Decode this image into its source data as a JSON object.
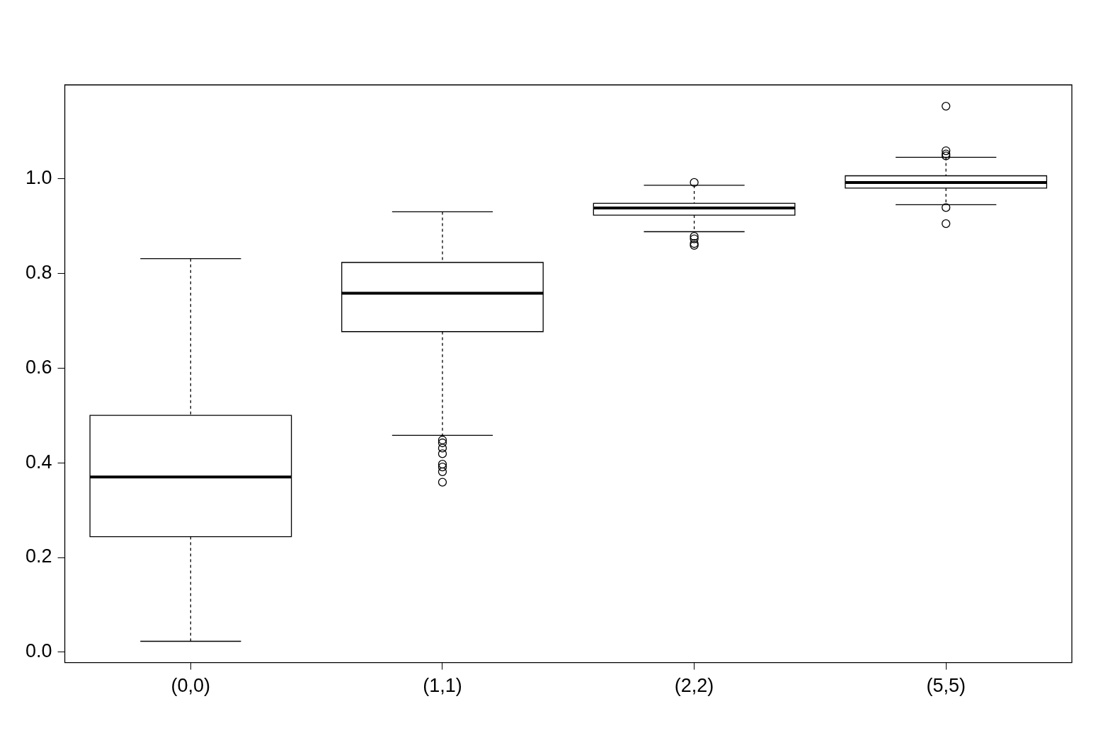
{
  "chart_data": {
    "type": "box",
    "categories": [
      "(0,0)",
      "(1,1)",
      "(2,2)",
      "(5,5)"
    ],
    "boxes": [
      {
        "low": 0.023,
        "q1": 0.244,
        "median": 0.37,
        "q3": 0.5,
        "high": 0.831
      },
      {
        "low": 0.458,
        "q1": 0.677,
        "median": 0.758,
        "q3": 0.823,
        "high": 0.93,
        "outliers": [
          0.448,
          0.442,
          0.431,
          0.419,
          0.397,
          0.391,
          0.381,
          0.359
        ]
      },
      {
        "low": 0.888,
        "q1": 0.923,
        "median": 0.938,
        "q3": 0.948,
        "high": 0.986,
        "outliers": [
          0.992,
          0.878,
          0.873,
          0.863,
          0.859
        ]
      },
      {
        "low": 0.945,
        "q1": 0.98,
        "median": 0.992,
        "q3": 1.006,
        "high": 1.045,
        "outliers": [
          1.153,
          1.059,
          1.052,
          1.048,
          0.939,
          0.905
        ]
      }
    ],
    "color": "#000000",
    "ylim": [
      -0.022,
      1.198
    ],
    "yticks": [
      {
        "value": 0,
        "label": "0.0"
      },
      {
        "value": 0.2,
        "label": "0.2"
      },
      {
        "value": 0.4,
        "label": "0.4"
      },
      {
        "value": 0.6,
        "label": "0.6"
      },
      {
        "value": 0.8,
        "label": "0.8"
      },
      {
        "value": 1,
        "label": "1.0"
      }
    ],
    "grid": false,
    "legend": false
  }
}
